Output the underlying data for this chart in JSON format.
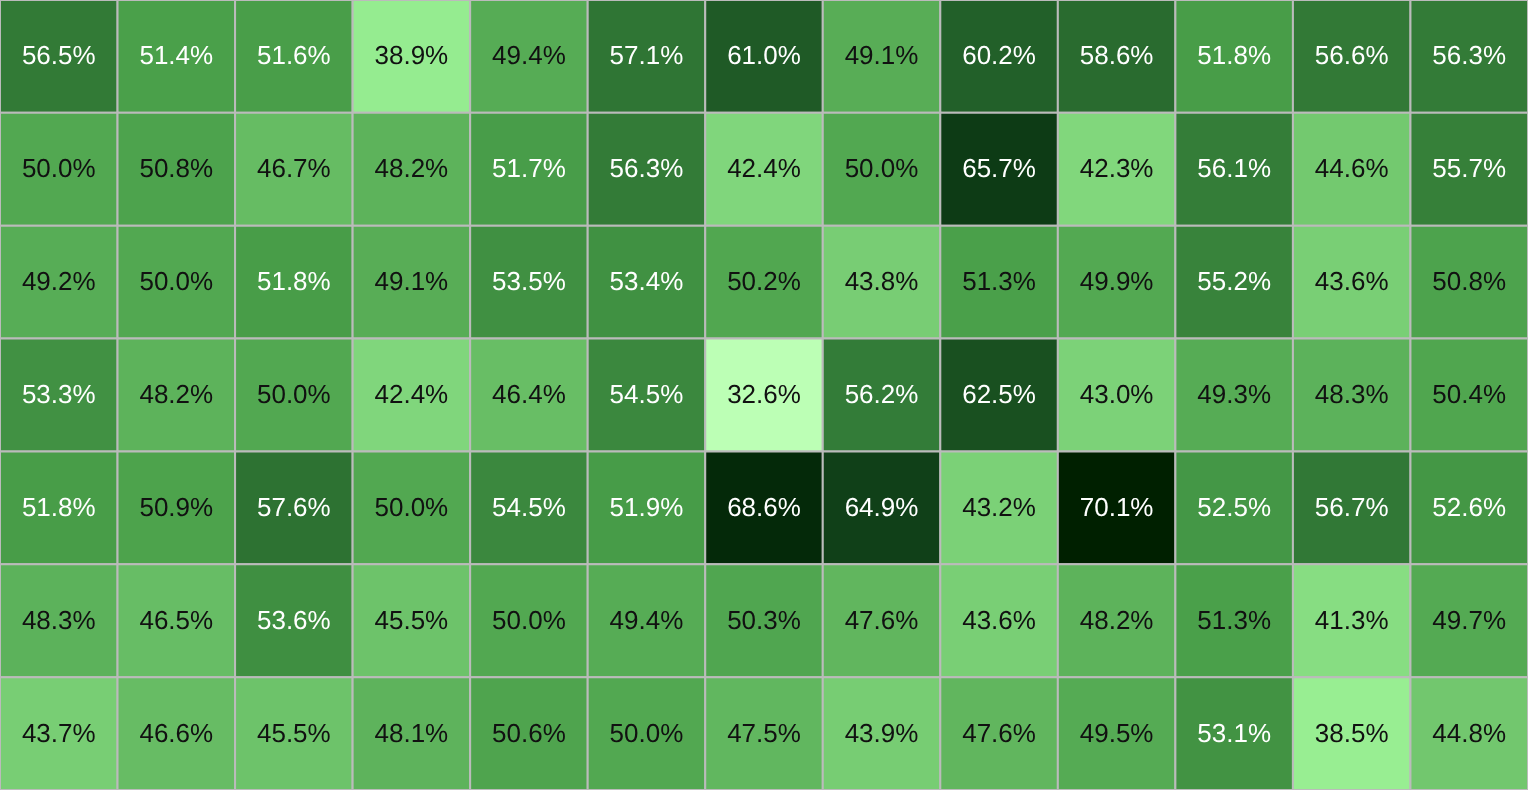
{
  "chart_data": {
    "type": "heatmap",
    "categories": [
      null,
      null,
      null,
      null,
      null,
      null,
      null,
      null,
      null,
      null,
      null,
      null,
      null
    ],
    "y_categories": [
      null,
      null,
      null,
      null,
      null,
      null,
      null
    ],
    "cells": [
      [
        56.5,
        51.4,
        51.6,
        38.9,
        49.4,
        57.1,
        61.0,
        49.1,
        60.2,
        58.6,
        51.8,
        56.6,
        56.3
      ],
      [
        50.0,
        50.8,
        46.7,
        48.2,
        51.7,
        56.3,
        42.4,
        50.0,
        65.7,
        42.3,
        56.1,
        44.6,
        55.7
      ],
      [
        49.2,
        50.0,
        51.8,
        49.1,
        53.5,
        53.4,
        50.2,
        43.8,
        51.3,
        49.9,
        55.2,
        43.6,
        50.8
      ],
      [
        53.3,
        48.2,
        50.0,
        42.4,
        46.4,
        54.5,
        32.6,
        56.2,
        62.5,
        43.0,
        49.3,
        48.3,
        50.4
      ],
      [
        51.8,
        50.9,
        57.6,
        50.0,
        54.5,
        51.9,
        68.6,
        64.9,
        43.2,
        70.1,
        52.5,
        56.7,
        52.6
      ],
      [
        48.3,
        46.5,
        53.6,
        45.5,
        50.0,
        49.4,
        50.3,
        47.6,
        43.6,
        48.2,
        51.3,
        41.3,
        49.7
      ],
      [
        43.7,
        46.6,
        45.5,
        48.1,
        50.6,
        50.0,
        47.5,
        43.9,
        47.6,
        49.5,
        53.1,
        38.5,
        44.8
      ]
    ],
    "cell_labels": [
      [
        "56.5%",
        "51.4%",
        "51.6%",
        "38.9%",
        "49.4%",
        "57.1%",
        "61.0%",
        "49.1%",
        "60.2%",
        "58.6%",
        "51.8%",
        "56.6%",
        "56.3%"
      ],
      [
        "50.0%",
        "50.8%",
        "46.7%",
        "48.2%",
        "51.7%",
        "56.3%",
        "42.4%",
        "50.0%",
        "65.7%",
        "42.3%",
        "56.1%",
        "44.6%",
        "55.7%"
      ],
      [
        "49.2%",
        "50.0%",
        "51.8%",
        "49.1%",
        "53.5%",
        "53.4%",
        "50.2%",
        "43.8%",
        "51.3%",
        "49.9%",
        "55.2%",
        "43.6%",
        "50.8%"
      ],
      [
        "53.3%",
        "48.2%",
        "50.0%",
        "42.4%",
        "46.4%",
        "54.5%",
        "32.6%",
        "56.2%",
        "62.5%",
        "43.0%",
        "49.3%",
        "48.3%",
        "50.4%"
      ],
      [
        "51.8%",
        "50.9%",
        "57.6%",
        "50.0%",
        "54.5%",
        "51.9%",
        "68.6%",
        "64.9%",
        "43.2%",
        "70.1%",
        "52.5%",
        "56.7%",
        "52.6%"
      ],
      [
        "48.3%",
        "46.5%",
        "53.6%",
        "45.5%",
        "50.0%",
        "49.4%",
        "50.3%",
        "47.6%",
        "43.6%",
        "48.2%",
        "51.3%",
        "41.3%",
        "49.7%"
      ],
      [
        "43.7%",
        "46.6%",
        "45.5%",
        "48.1%",
        "50.6%",
        "50.0%",
        "47.5%",
        "43.9%",
        "47.6%",
        "49.5%",
        "53.1%",
        "38.5%",
        "44.8%"
      ]
    ]
  }
}
